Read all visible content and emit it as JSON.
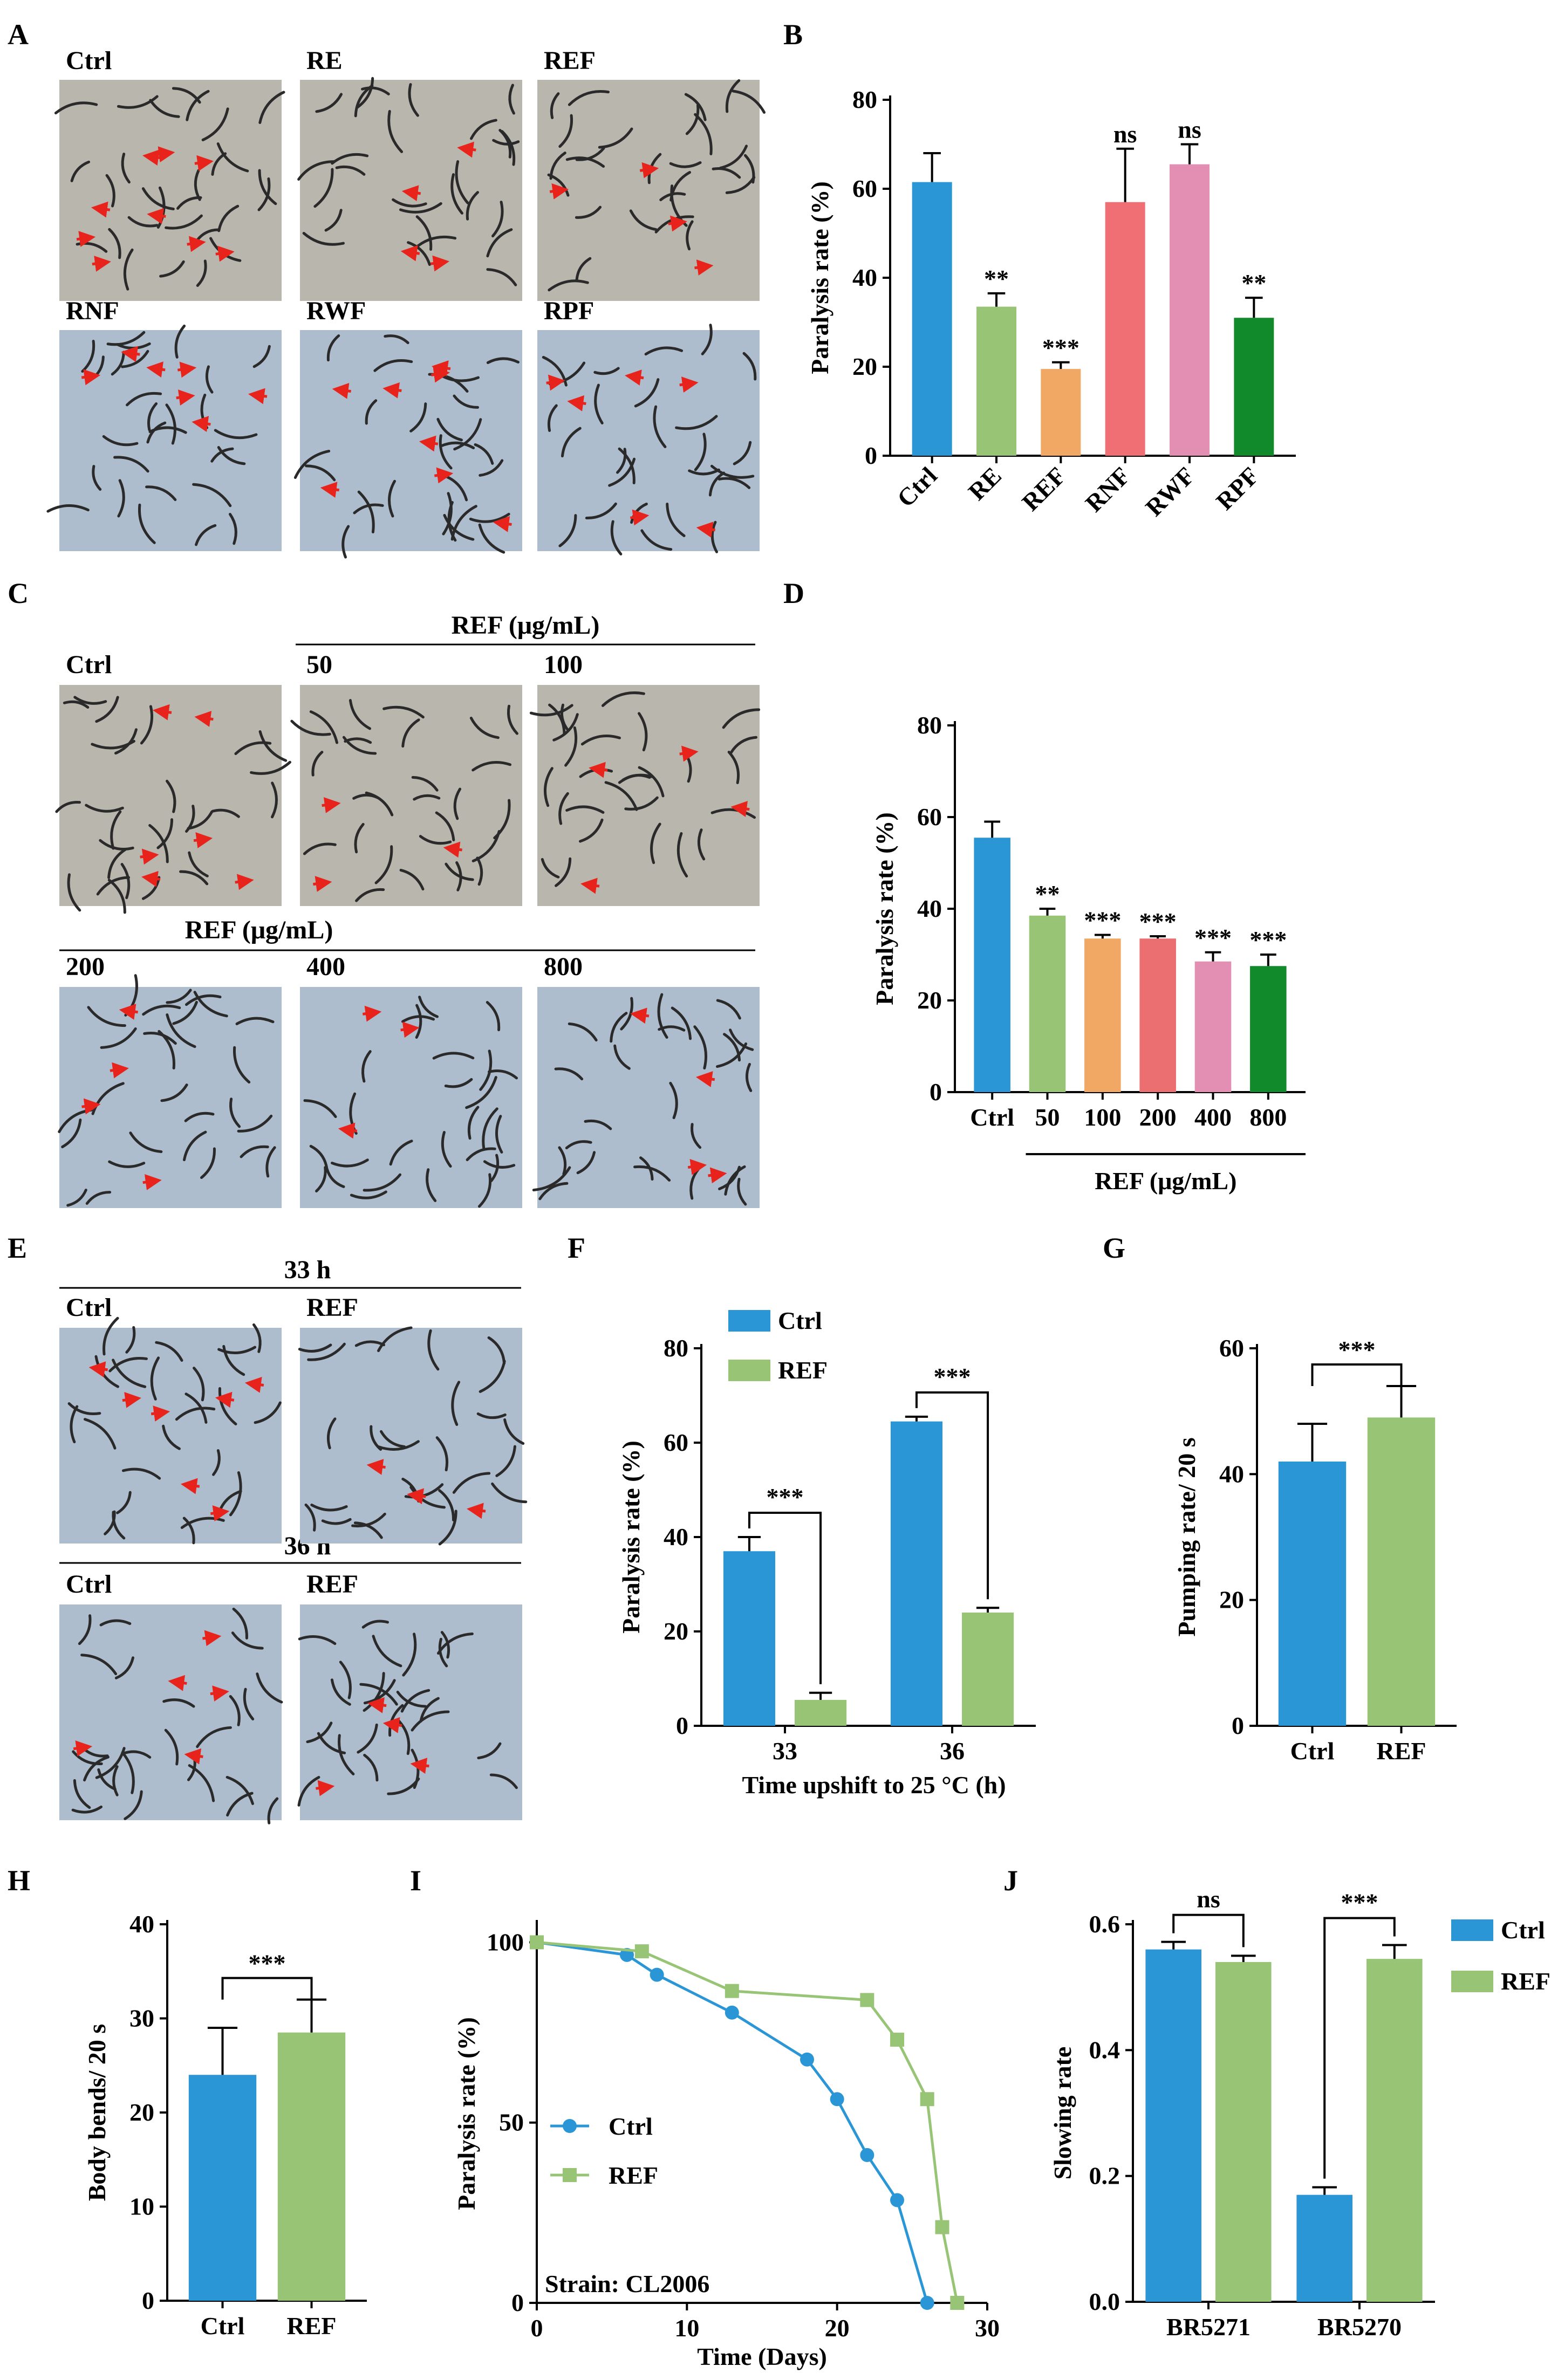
{
  "colors": {
    "blue": "#2b96d5",
    "lightgreen": "#97c475",
    "orange": "#f1a865",
    "red": "#ef6f74",
    "pink": "#e38fb4",
    "darkgreen": "#118a2c",
    "salmon": "#eb6f71",
    "micro_gray": "#b9b6ae",
    "micro_blue": "#aebdcd",
    "arrow": "#e8231c"
  },
  "panel_letters": {
    "A": "A",
    "B": "B",
    "C": "C",
    "D": "D",
    "E": "E",
    "F": "F",
    "G": "G",
    "H": "H",
    "I": "I",
    "J": "J"
  },
  "micrographs": {
    "A": {
      "tiles": [
        {
          "label": "Ctrl",
          "arrows": 9
        },
        {
          "label": "RE",
          "arrows": 4
        },
        {
          "label": "REF",
          "arrows": 4
        },
        {
          "label": "RNF",
          "arrows": 7
        },
        {
          "label": "RWF",
          "arrows": 8
        },
        {
          "label": "RPF",
          "arrows": 6
        }
      ]
    },
    "C": {
      "group_label_top": "REF (μg/mL)",
      "group_label_bottom": "REF (μg/mL)",
      "tiles": [
        {
          "label": "Ctrl",
          "arrows": 6
        },
        {
          "label": "50",
          "arrows": 3
        },
        {
          "label": "100",
          "arrows": 4
        },
        {
          "label": "200",
          "arrows": 4
        },
        {
          "label": "400",
          "arrows": 3
        },
        {
          "label": "800",
          "arrows": 4
        }
      ]
    },
    "E": {
      "time_top": "33 h",
      "time_bottom": "36 h",
      "tiles": [
        {
          "label": "Ctrl",
          "arrows": 7
        },
        {
          "label": "REF",
          "arrows": 3
        },
        {
          "label": "Ctrl",
          "arrows": 5
        },
        {
          "label": "REF",
          "arrows": 4
        }
      ]
    }
  },
  "chart_data": [
    {
      "panel": "B",
      "type": "bar",
      "title": "",
      "xlabel": "",
      "ylabel": "Paralysis rate (%)",
      "ylim": [
        0,
        80
      ],
      "yticks": [
        0,
        20,
        40,
        60,
        80
      ],
      "categories": [
        "Ctrl",
        "RE",
        "REF",
        "RNF",
        "RWF",
        "RPF"
      ],
      "values": [
        61.5,
        33.5,
        19.5,
        57,
        65.5,
        31
      ],
      "errors": [
        6.5,
        3,
        1.5,
        12,
        4.5,
        4.5
      ],
      "significance": [
        "",
        "**",
        "***",
        "ns",
        "ns",
        "**"
      ],
      "colors": [
        "#2b96d5",
        "#97c475",
        "#f1a865",
        "#ef6f74",
        "#e38fb4",
        "#118a2c"
      ],
      "x_tick_rotation": "rotated"
    },
    {
      "panel": "D",
      "type": "bar",
      "xlabel": "REF (μg/mL)",
      "ylabel": "Paralysis rate (%)",
      "ylim": [
        0,
        80
      ],
      "yticks": [
        0,
        20,
        40,
        60,
        80
      ],
      "categories": [
        "Ctrl",
        "50",
        "100",
        "200",
        "400",
        "800"
      ],
      "values": [
        55.5,
        38.5,
        33.5,
        33.5,
        28.5,
        27.5
      ],
      "errors": [
        3.5,
        1.5,
        0.8,
        0.5,
        2,
        2.5
      ],
      "significance": [
        "",
        "**",
        "***",
        "***",
        "***",
        "***"
      ],
      "colors": [
        "#2b96d5",
        "#97c475",
        "#f1a865",
        "#eb6f71",
        "#e38fb4",
        "#118a2c"
      ]
    },
    {
      "panel": "F",
      "type": "bar",
      "xlabel": "Time upshift to 25 °C (h)",
      "ylabel": "Paralysis rate (%)",
      "ylim": [
        0,
        80
      ],
      "yticks": [
        0,
        20,
        40,
        60,
        80
      ],
      "categories": [
        "33",
        "36"
      ],
      "series": [
        {
          "name": "Ctrl",
          "values": [
            37,
            64.5
          ],
          "errors": [
            3,
            1
          ]
        },
        {
          "name": "REF",
          "values": [
            5.5,
            24
          ],
          "errors": [
            1.5,
            1
          ]
        }
      ],
      "brackets": [
        {
          "category": "33",
          "label": "***"
        },
        {
          "category": "36",
          "label": "***"
        }
      ],
      "legend": "top-left"
    },
    {
      "panel": "G",
      "type": "bar",
      "xlabel": "",
      "ylabel": "Pumping rate/ 20 s",
      "ylim": [
        0,
        60
      ],
      "yticks": [
        0,
        20,
        40,
        60
      ],
      "categories": [
        "Ctrl",
        "REF"
      ],
      "values": [
        42,
        49
      ],
      "errors": [
        6,
        5
      ],
      "brackets": [
        {
          "label": "***"
        }
      ]
    },
    {
      "panel": "H",
      "type": "bar",
      "xlabel": "",
      "ylabel": "Body bends/ 20 s",
      "ylim": [
        0,
        40
      ],
      "yticks": [
        0,
        10,
        20,
        30,
        40
      ],
      "categories": [
        "Ctrl",
        "REF"
      ],
      "values": [
        24,
        28.5
      ],
      "errors": [
        5,
        3.5
      ],
      "brackets": [
        {
          "label": "***"
        }
      ]
    },
    {
      "panel": "I",
      "type": "line",
      "xlabel": "Time (Days)",
      "ylabel": "Paralysis rate (%)",
      "xlim": [
        0,
        30
      ],
      "ylim": [
        0,
        105
      ],
      "xticks": [
        0,
        10,
        20,
        30
      ],
      "yticks": [
        0,
        50,
        100
      ],
      "series": [
        {
          "name": "Ctrl",
          "marker": "circle",
          "x": [
            0,
            6,
            8,
            13,
            18,
            20,
            22,
            24,
            26
          ],
          "y": [
            100,
            96.5,
            91,
            80.5,
            67.5,
            56.5,
            41,
            28.5,
            0
          ]
        },
        {
          "name": "REF",
          "marker": "square",
          "x": [
            0,
            7,
            13,
            22,
            24,
            26,
            27,
            28
          ],
          "y": [
            100,
            97.5,
            86.5,
            84,
            73,
            56.5,
            21,
            0
          ]
        }
      ],
      "annotation": "Strain: CL2006",
      "legend": "center-left"
    },
    {
      "panel": "J",
      "type": "bar",
      "xlabel": "",
      "ylabel": "Slowing rate",
      "ylim": [
        0,
        0.6
      ],
      "yticks": [
        "0.0",
        "0.2",
        "0.4",
        "0.6"
      ],
      "categories": [
        "BR5271",
        "BR5270"
      ],
      "series": [
        {
          "name": "Ctrl",
          "values": [
            0.56,
            0.17
          ],
          "errors": [
            0.012,
            0.012
          ]
        },
        {
          "name": "REF",
          "values": [
            0.54,
            0.545
          ],
          "errors": [
            0.01,
            0.022
          ]
        }
      ],
      "brackets": [
        {
          "category": "BR5271",
          "label": "ns"
        },
        {
          "category": "BR5270",
          "label": "***"
        }
      ],
      "legend": "top-right"
    }
  ]
}
